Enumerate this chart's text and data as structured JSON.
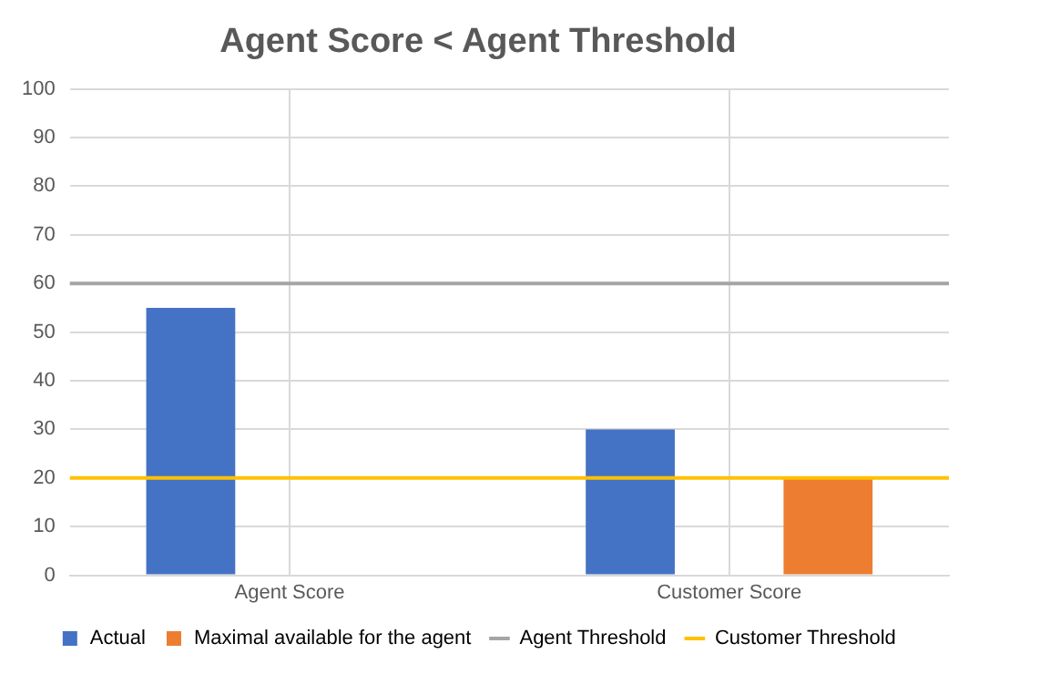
{
  "chart_data": {
    "type": "bar",
    "title": "Agent Score < Agent Threshold",
    "categories": [
      "Agent Score",
      "Customer Score"
    ],
    "series": [
      {
        "name": "Actual",
        "color": "#4472c4",
        "values": [
          55,
          30
        ]
      },
      {
        "name": "Maximal available for the agent",
        "color": "#ed7d31",
        "values": [
          null,
          20
        ]
      }
    ],
    "ylim": [
      0,
      100
    ],
    "yticks": [
      0,
      10,
      20,
      30,
      40,
      50,
      60,
      70,
      80,
      90,
      100
    ],
    "ref_lines": [
      {
        "axis": "y",
        "value": 60,
        "label": "Agent Threshold",
        "color": "#a5a5a5"
      },
      {
        "axis": "y",
        "value": 20,
        "label": "Customer Threshold",
        "color": "#ffc000"
      }
    ],
    "grid": true,
    "legend": "bottom"
  }
}
